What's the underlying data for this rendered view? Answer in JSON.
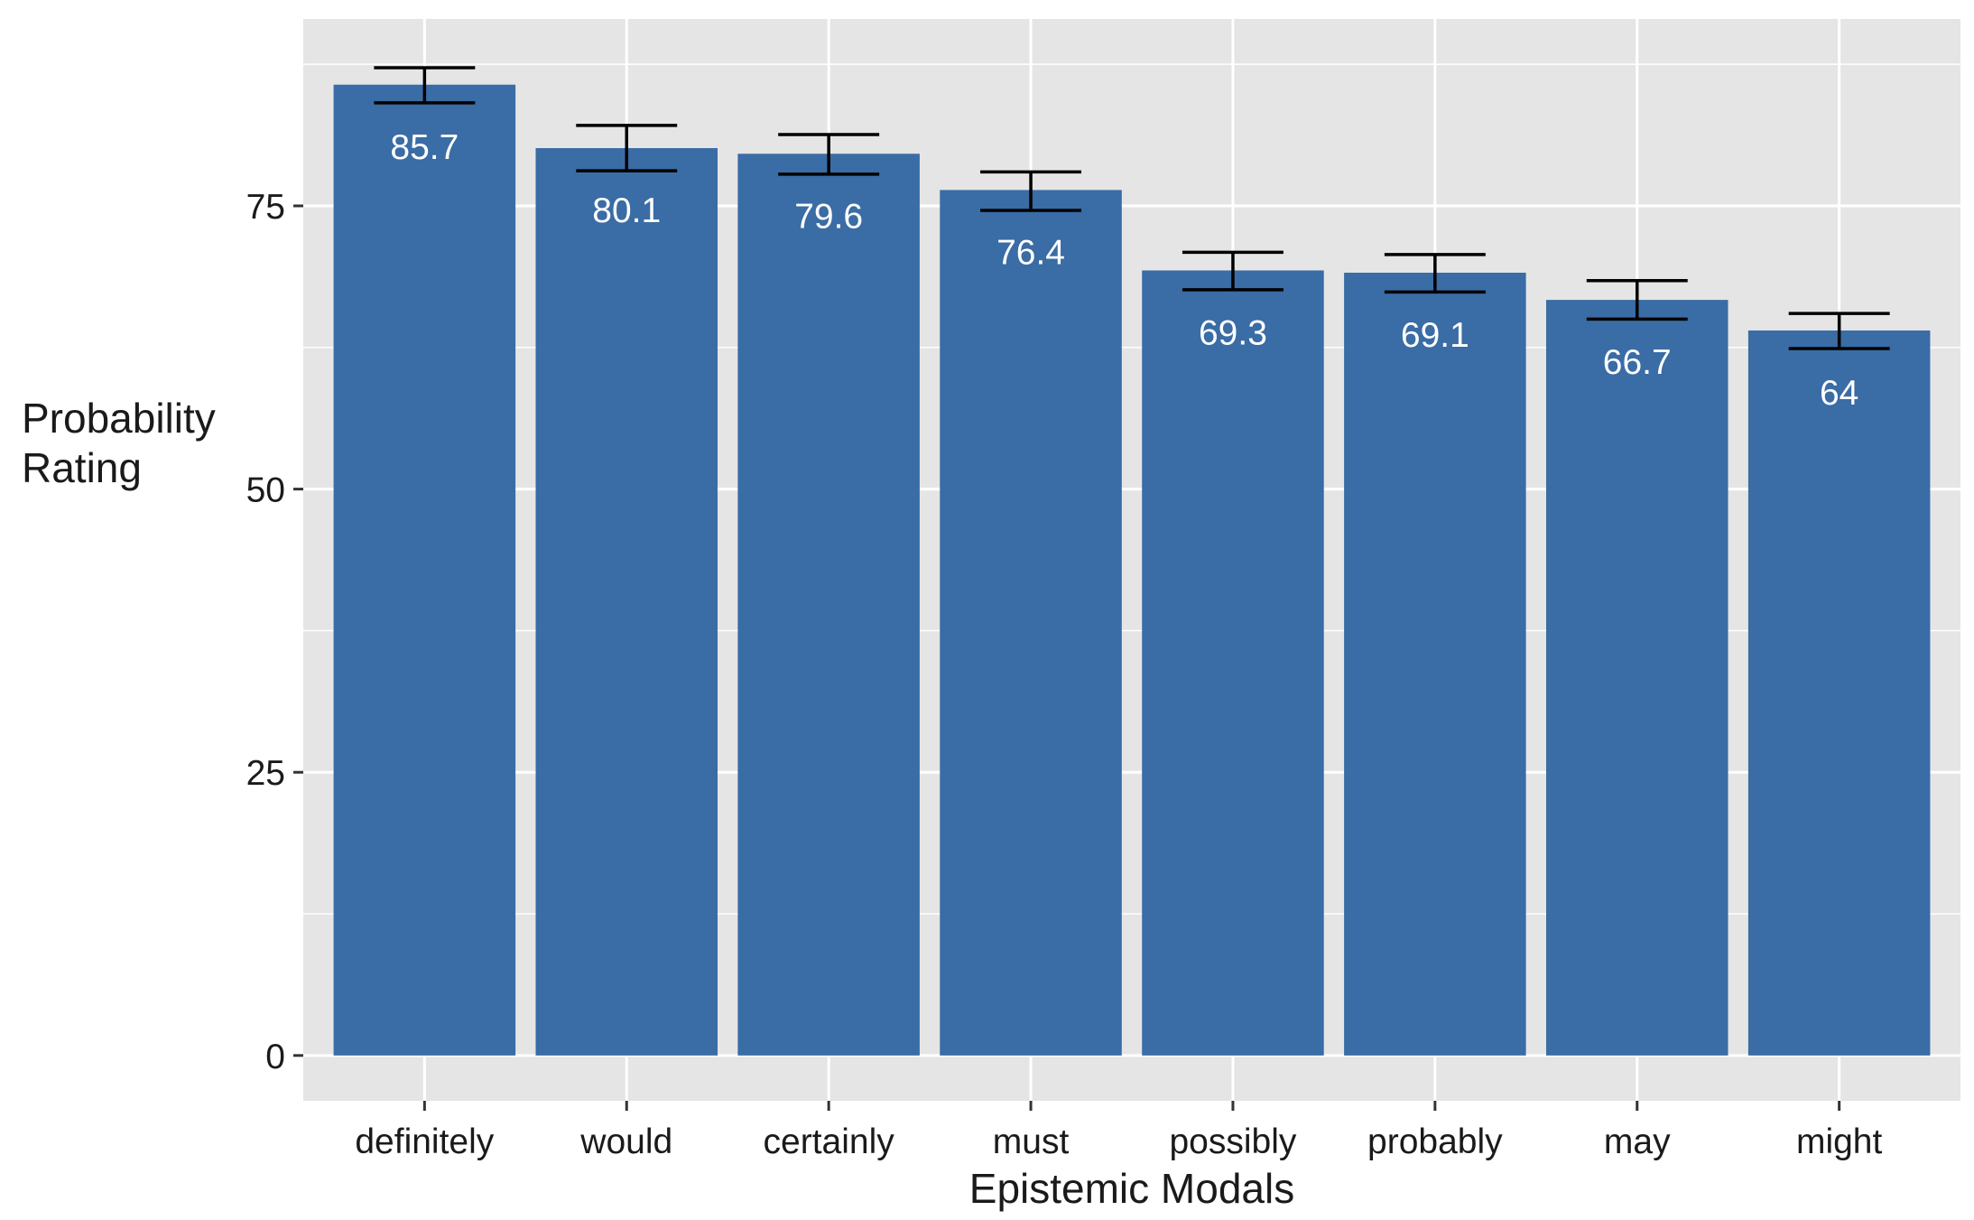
{
  "chart_data": {
    "type": "bar",
    "title": "",
    "xlabel": "Epistemic Modals",
    "ylabel": [
      "Probability",
      "Rating"
    ],
    "categories": [
      "definitely",
      "would",
      "certainly",
      "must",
      "possibly",
      "probably",
      "may",
      "might"
    ],
    "values": [
      85.7,
      80.1,
      79.6,
      76.4,
      69.3,
      69.1,
      66.7,
      64
    ],
    "value_labels": [
      "85.7",
      "80.1",
      "79.6",
      "76.4",
      "69.3",
      "69.1",
      "66.7",
      "64"
    ],
    "error_low": [
      84.1,
      78.1,
      77.8,
      74.6,
      67.6,
      67.4,
      65.0,
      62.4
    ],
    "error_high": [
      87.2,
      82.1,
      81.3,
      78.0,
      70.9,
      70.7,
      68.4,
      65.5
    ],
    "ylim": [
      -4,
      91.5
    ],
    "yticks": [
      0,
      25,
      50,
      75
    ],
    "ytick_labels": [
      "0",
      "25",
      "50",
      "75"
    ],
    "grid": true,
    "colors": {
      "bar": "#3a6ca5",
      "panel": "#e5e5e5",
      "grid": "#ffffff",
      "errorbar": "#000000"
    }
  }
}
